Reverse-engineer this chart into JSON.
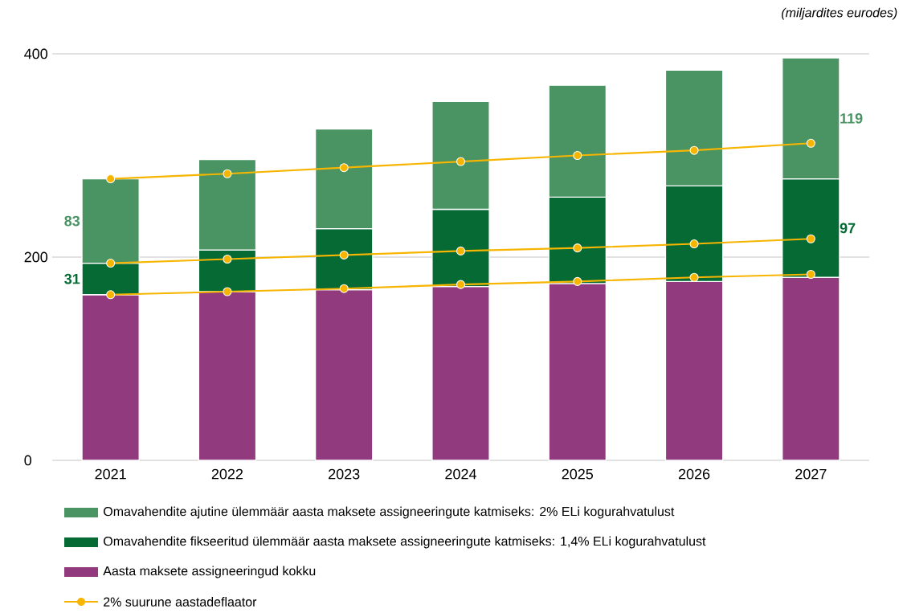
{
  "chart_data": {
    "type": "bar",
    "stacked": true,
    "ylabel": "(miljardites eurodes)",
    "categories": [
      "2021",
      "2022",
      "2023",
      "2024",
      "2025",
      "2026",
      "2027"
    ],
    "series": [
      {
        "name": "Aasta maksete assigneeringud kokku",
        "color": "#923a7e",
        "values": [
          163,
          166,
          168,
          171,
          174,
          176,
          180
        ]
      },
      {
        "name": "Omavahendite fikseeritud ülemmäär aasta maksete assigneeringute katmiseks: 1,4% ELi kogurahvatulust",
        "color": "#066a35",
        "values": [
          31,
          41,
          60,
          76,
          85,
          94,
          97
        ],
        "value_labels": [
          "31",
          null,
          null,
          null,
          null,
          null,
          "97"
        ]
      },
      {
        "name": "Omavahendite ajutine ülemmäär aasta maksete assigneeringute katmiseks: 2% ELi kogurahvatulust",
        "color": "#4a9463",
        "values": [
          83,
          89,
          98,
          106,
          110,
          114,
          119
        ],
        "value_labels": [
          "83",
          null,
          null,
          null,
          null,
          null,
          "119"
        ]
      },
      {
        "name": "2% suurune aastadeflaator",
        "type": "line",
        "marker": "circle",
        "color": "#f7b500",
        "values": [
          277,
          282,
          288,
          294,
          300,
          305,
          312
        ]
      },
      {
        "type": "line",
        "marker": "circle",
        "color": "#f7b500",
        "values": [
          194,
          198,
          202,
          206,
          209,
          213,
          218
        ]
      },
      {
        "type": "line",
        "marker": "circle",
        "color": "#f7b500",
        "values": [
          163,
          166,
          169,
          173,
          176,
          180,
          183
        ]
      }
    ],
    "ylim": [
      0,
      400
    ],
    "yticks": [
      0,
      200,
      400
    ],
    "grid": "y",
    "legend": "bottom"
  }
}
